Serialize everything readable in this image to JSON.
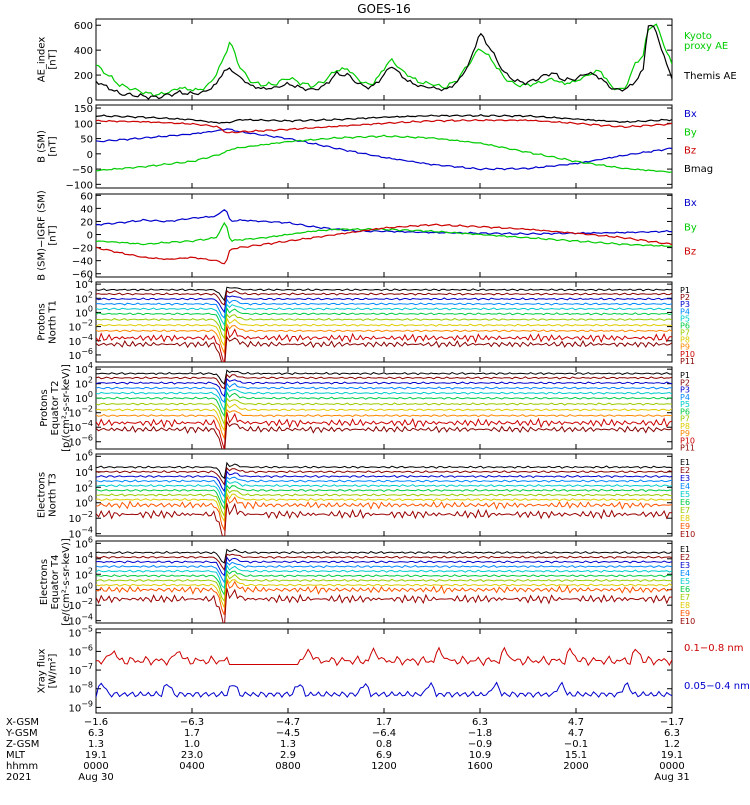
{
  "title": "GOES-16",
  "chart_data": [
    {
      "type": "line",
      "ylabel_lines": [
        "AE_index",
        "[nT]"
      ],
      "ylim": [
        0,
        650
      ],
      "yticks": [
        {
          "v": 0,
          "label": "0"
        },
        {
          "v": 200,
          "label": "200"
        },
        {
          "v": 400,
          "label": "400"
        },
        {
          "v": 600,
          "label": "600"
        }
      ],
      "legend": [
        {
          "text": "Kyoto",
          "color": "#00cc00"
        },
        {
          "text": "proxy AE",
          "color": "#00cc00"
        },
        {
          "text": "Themis AE",
          "color": "#000000"
        }
      ],
      "series": [
        {
          "name": "Kyoto proxy AE",
          "color": "#00cc00",
          "x": [
            0,
            1,
            2,
            2.5,
            3,
            3.5,
            4,
            4.5,
            4.8,
            5,
            5.3,
            5.6,
            6,
            6.5,
            7,
            7.5,
            8,
            8.5,
            9,
            9.5,
            10,
            10.5,
            11,
            11.5,
            12,
            12.3,
            12.6,
            13,
            13.5,
            14,
            14.5,
            15,
            15.5,
            16,
            16.5,
            17,
            17.5,
            18,
            18.5,
            19,
            19.5,
            20,
            20.5,
            21,
            21.5,
            22,
            22.5,
            22.8,
            23,
            23.3,
            23.6,
            24
          ],
          "y": [
            280,
            120,
            60,
            40,
            60,
            100,
            80,
            90,
            150,
            200,
            330,
            470,
            260,
            140,
            120,
            130,
            180,
            140,
            110,
            150,
            240,
            250,
            150,
            120,
            250,
            330,
            260,
            200,
            140,
            130,
            100,
            150,
            280,
            420,
            320,
            180,
            120,
            120,
            140,
            170,
            130,
            150,
            200,
            240,
            100,
            80,
            300,
            360,
            560,
            620,
            480,
            280
          ]
        },
        {
          "name": "Themis AE",
          "color": "#000000",
          "x": [
            0,
            1,
            2,
            2.5,
            3,
            3.5,
            4,
            4.5,
            4.8,
            5,
            5.3,
            5.6,
            6,
            6.5,
            7,
            7.5,
            8,
            8.5,
            9,
            9.5,
            10,
            10.5,
            11,
            11.5,
            12,
            12.3,
            12.6,
            13,
            13.5,
            14,
            14.5,
            15,
            15.5,
            16,
            16.5,
            17,
            17.5,
            18,
            18.5,
            19,
            19.5,
            20,
            20.5,
            21,
            21.5,
            22,
            22.5,
            22.8,
            23,
            23.3,
            23.6,
            24
          ],
          "y": [
            150,
            50,
            30,
            20,
            40,
            60,
            50,
            60,
            100,
            120,
            230,
            250,
            180,
            110,
            90,
            100,
            130,
            100,
            80,
            110,
            210,
            200,
            120,
            100,
            200,
            280,
            220,
            150,
            110,
            100,
            80,
            130,
            270,
            540,
            390,
            220,
            150,
            140,
            180,
            220,
            160,
            170,
            220,
            180,
            90,
            80,
            150,
            250,
            600,
            580,
            380,
            180
          ]
        }
      ]
    },
    {
      "type": "line",
      "ylabel_lines": [
        "B (SM)",
        "[nT]"
      ],
      "ylim": [
        -112,
        160
      ],
      "yticks": [
        {
          "v": -100,
          "label": "−100"
        },
        {
          "v": -50,
          "label": "−50"
        },
        {
          "v": 0,
          "label": "0"
        },
        {
          "v": 50,
          "label": "50"
        },
        {
          "v": 100,
          "label": "100"
        },
        {
          "v": 150,
          "label": "150"
        }
      ],
      "legend": [
        {
          "text": "Bx",
          "color": "#0000cc"
        },
        {
          "text": "By",
          "color": "#00cc00"
        },
        {
          "text": "Bz",
          "color": "#cc0000"
        },
        {
          "text": "Bmag",
          "color": "#000000"
        }
      ],
      "series": [
        {
          "name": "Bx",
          "color": "#0000cc",
          "x": [
            0,
            2,
            4,
            5,
            5.5,
            6,
            8,
            10,
            12,
            14,
            16,
            18,
            20,
            22,
            24
          ],
          "y": [
            40,
            52,
            65,
            75,
            82,
            72,
            50,
            18,
            -12,
            -35,
            -50,
            -48,
            -32,
            -5,
            18
          ]
        },
        {
          "name": "By",
          "color": "#00cc00",
          "x": [
            0,
            2,
            4,
            5,
            5.4,
            5.6,
            6,
            8,
            10,
            12,
            14,
            16,
            18,
            20,
            22,
            24
          ],
          "y": [
            -55,
            -42,
            -25,
            -5,
            5,
            15,
            20,
            40,
            52,
            58,
            52,
            35,
            5,
            -25,
            -48,
            -60
          ]
        },
        {
          "name": "Bz",
          "color": "#cc0000",
          "x": [
            0,
            2,
            4,
            5,
            5.5,
            6,
            8,
            10,
            12,
            14,
            16,
            18,
            20,
            22,
            24
          ],
          "y": [
            108,
            105,
            98,
            90,
            68,
            72,
            80,
            90,
            100,
            108,
            110,
            110,
            100,
            88,
            98
          ]
        },
        {
          "name": "Bmag",
          "color": "#000000",
          "x": [
            0,
            2,
            4,
            5,
            5.5,
            6,
            8,
            10,
            12,
            14,
            16,
            18,
            20,
            22,
            24
          ],
          "y": [
            125,
            120,
            112,
            102,
            102,
            112,
            108,
            112,
            120,
            125,
            125,
            124,
            114,
            104,
            112
          ]
        }
      ]
    },
    {
      "type": "line",
      "ylabel_lines": [
        "B (SM)−IGRF (SM)",
        "[nT]"
      ],
      "ylim": [
        -65,
        62
      ],
      "yticks": [
        {
          "v": -60,
          "label": "−60"
        },
        {
          "v": -40,
          "label": "−40"
        },
        {
          "v": -20,
          "label": "−20"
        },
        {
          "v": 0,
          "label": "0"
        },
        {
          "v": 20,
          "label": "20"
        },
        {
          "v": 40,
          "label": "40"
        },
        {
          "v": 60,
          "label": "60"
        }
      ],
      "legend": [
        {
          "text": "Bx",
          "color": "#0000cc"
        },
        {
          "text": "By",
          "color": "#00cc00"
        },
        {
          "text": "Bz",
          "color": "#cc0000"
        }
      ],
      "series": [
        {
          "name": "Bx",
          "color": "#0000cc",
          "x": [
            0,
            1,
            2,
            3,
            4,
            5,
            5.4,
            5.6,
            6,
            7,
            8,
            9,
            10,
            11,
            12,
            14,
            16,
            18,
            20,
            22,
            24
          ],
          "y": [
            15,
            18,
            22,
            20,
            25,
            28,
            40,
            20,
            22,
            20,
            18,
            12,
            8,
            5,
            5,
            3,
            2,
            1,
            2,
            3,
            5
          ]
        },
        {
          "name": "By",
          "color": "#00cc00",
          "x": [
            0,
            1,
            2,
            3,
            4,
            5,
            5.4,
            5.6,
            6,
            7,
            8,
            9,
            10,
            11,
            12,
            14,
            16,
            18,
            20,
            22,
            24
          ],
          "y": [
            -10,
            -12,
            -15,
            -12,
            -10,
            -5,
            20,
            -10,
            -8,
            -5,
            0,
            5,
            8,
            8,
            8,
            5,
            0,
            -5,
            -10,
            -15,
            -18
          ]
        },
        {
          "name": "Bz",
          "color": "#cc0000",
          "x": [
            0,
            1,
            2,
            3,
            4,
            5,
            5.4,
            5.6,
            6,
            7,
            8,
            9,
            10,
            11,
            12,
            14,
            16,
            18,
            20,
            22,
            24
          ],
          "y": [
            -20,
            -28,
            -35,
            -38,
            -35,
            -40,
            -45,
            -22,
            -20,
            -15,
            -10,
            -5,
            0,
            5,
            10,
            15,
            12,
            8,
            2,
            -5,
            -15
          ]
        }
      ]
    },
    {
      "type": "log-line",
      "ylabel_lines": [
        "Protons",
        "North T1"
      ],
      "log_range": [
        -7,
        4.3
      ],
      "yticks": [
        {
          "e": -6
        },
        {
          "e": -4
        },
        {
          "e": -2
        },
        {
          "e": 0
        },
        {
          "e": 2
        },
        {
          "e": 4
        }
      ],
      "channels": [
        {
          "name": "P1",
          "color": "#000000",
          "level": 3.2
        },
        {
          "name": "P2",
          "color": "#880000",
          "level": 2.6
        },
        {
          "name": "P3",
          "color": "#0000cc",
          "level": 1.9
        },
        {
          "name": "P4",
          "color": "#0088ff",
          "level": 1.2
        },
        {
          "name": "P5",
          "color": "#00cccc",
          "level": 0.5
        },
        {
          "name": "P6",
          "color": "#00cc44",
          "level": -0.2
        },
        {
          "name": "P7",
          "color": "#99cc00",
          "level": -1.0
        },
        {
          "name": "P8",
          "color": "#ddcc00",
          "level": -1.8
        },
        {
          "name": "P9",
          "color": "#ff8800",
          "level": -2.6
        },
        {
          "name": "P10",
          "color": "#cc0000",
          "level": -3.6
        },
        {
          "name": "P11",
          "color": "#880000",
          "level": -4.5
        }
      ]
    },
    {
      "type": "log-line",
      "ylabel_lines": [
        "Protons",
        "Equator T2",
        "[p/(cm²-s-sr-keV)]"
      ],
      "log_range": [
        -7,
        4.3
      ],
      "yticks": [
        {
          "e": -6
        },
        {
          "e": -4
        },
        {
          "e": -2
        },
        {
          "e": 0
        },
        {
          "e": 2
        },
        {
          "e": 4
        }
      ],
      "channels": [
        {
          "name": "P1",
          "color": "#000000",
          "level": 3.4
        },
        {
          "name": "P2",
          "color": "#880000",
          "level": 2.8
        },
        {
          "name": "P3",
          "color": "#0000cc",
          "level": 2.1
        },
        {
          "name": "P4",
          "color": "#0088ff",
          "level": 1.4
        },
        {
          "name": "P5",
          "color": "#00cccc",
          "level": 0.7
        },
        {
          "name": "P6",
          "color": "#00cc44",
          "level": 0.0
        },
        {
          "name": "P7",
          "color": "#99cc00",
          "level": -0.8
        },
        {
          "name": "P8",
          "color": "#ddcc00",
          "level": -1.6
        },
        {
          "name": "P9",
          "color": "#ff8800",
          "level": -2.4
        },
        {
          "name": "P10",
          "color": "#cc0000",
          "level": -3.4
        },
        {
          "name": "P11",
          "color": "#880000",
          "level": -4.3
        }
      ]
    },
    {
      "type": "log-line",
      "ylabel_lines": [
        "Electrons",
        "North T3"
      ],
      "log_range": [
        -4.3,
        6.3
      ],
      "yticks": [
        {
          "e": -4
        },
        {
          "e": -2
        },
        {
          "e": 0
        },
        {
          "e": 2
        },
        {
          "e": 4
        },
        {
          "e": 6
        }
      ],
      "channels": [
        {
          "name": "E1",
          "color": "#000000",
          "level": 4.6
        },
        {
          "name": "E2",
          "color": "#880000",
          "level": 4.0
        },
        {
          "name": "E3",
          "color": "#0000cc",
          "level": 3.4
        },
        {
          "name": "E4",
          "color": "#0088ff",
          "level": 2.8
        },
        {
          "name": "E5",
          "color": "#00cccc",
          "level": 2.2
        },
        {
          "name": "E6",
          "color": "#00cc44",
          "level": 1.6
        },
        {
          "name": "E7",
          "color": "#99cc00",
          "level": 1.0
        },
        {
          "name": "E8",
          "color": "#ddcc00",
          "level": 0.4
        },
        {
          "name": "E9",
          "color": "#ff5500",
          "level": -0.3
        },
        {
          "name": "E10",
          "color": "#990000",
          "level": -1.5
        }
      ]
    },
    {
      "type": "log-line",
      "ylabel_lines": [
        "Electrons",
        "Equator T4",
        "[e/(cm²-s-sr-keV)]"
      ],
      "log_range": [
        -4.3,
        6.3
      ],
      "yticks": [
        {
          "e": -4
        },
        {
          "e": -2
        },
        {
          "e": 0
        },
        {
          "e": 2
        },
        {
          "e": 4
        },
        {
          "e": 6
        }
      ],
      "channels": [
        {
          "name": "E1",
          "color": "#000000",
          "level": 4.8
        },
        {
          "name": "E2",
          "color": "#880000",
          "level": 4.2
        },
        {
          "name": "E3",
          "color": "#0000cc",
          "level": 3.6
        },
        {
          "name": "E4",
          "color": "#0088ff",
          "level": 3.0
        },
        {
          "name": "E5",
          "color": "#00cccc",
          "level": 2.4
        },
        {
          "name": "E6",
          "color": "#00cc44",
          "level": 1.8
        },
        {
          "name": "E7",
          "color": "#99cc00",
          "level": 1.2
        },
        {
          "name": "E8",
          "color": "#ddcc00",
          "level": 0.6
        },
        {
          "name": "E9",
          "color": "#ff5500",
          "level": 0.0
        },
        {
          "name": "E10",
          "color": "#990000",
          "level": -1.2
        }
      ]
    },
    {
      "type": "log-line",
      "ylabel_lines": [
        "Xray flux",
        "[W/m²]"
      ],
      "log_range": [
        -9.3,
        -4.8
      ],
      "yticks": [
        {
          "e": -9
        },
        {
          "e": -8
        },
        {
          "e": -7
        },
        {
          "e": -6
        },
        {
          "e": -5
        }
      ],
      "channels": [
        {
          "name": "0.1−0.8 nm",
          "color": "#cc0000",
          "level": -6.5
        },
        {
          "name": "0.05−0.4 nm",
          "color": "#0000cc",
          "level": -8.3
        }
      ]
    }
  ],
  "xaxis": {
    "hours": [
      0,
      4,
      8,
      12,
      16,
      20,
      24
    ],
    "row_labels": [
      "X-GSM",
      "Y-GSM",
      "Z-GSM",
      "MLT",
      "hhmm",
      "2021"
    ],
    "columns": [
      [
        "−1.6",
        "6.3",
        "1.3",
        "19.1",
        "0000",
        "Aug 30"
      ],
      [
        "−6.3",
        "1.7",
        "1.0",
        "23.0",
        "0400",
        ""
      ],
      [
        "−4.7",
        "−4.5",
        "1.3",
        "2.9",
        "0800",
        ""
      ],
      [
        "1.7",
        "−6.4",
        "0.8",
        "6.9",
        "1200",
        ""
      ],
      [
        "6.3",
        "−1.8",
        "−0.9",
        "10.9",
        "1600",
        ""
      ],
      [
        "4.7",
        "4.7",
        "−0.1",
        "15.1",
        "2000",
        ""
      ],
      [
        "−1.7",
        "6.3",
        "1.2",
        "19.1",
        "0000",
        "Aug 31"
      ]
    ]
  }
}
